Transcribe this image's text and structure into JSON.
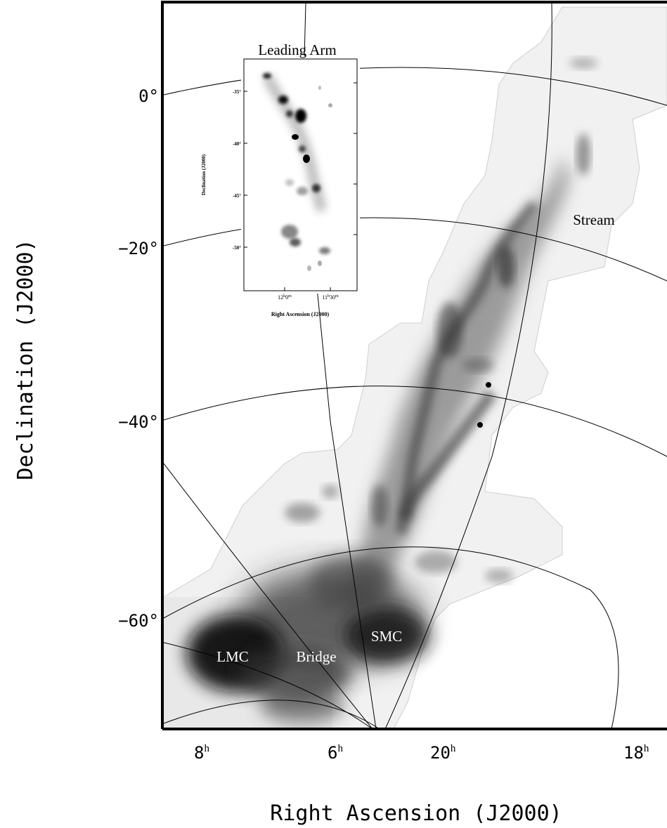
{
  "figure": {
    "x_axis_label": "Right Ascension (J2000)",
    "y_axis_label": "Declination (J2000)",
    "ra_ticks": [
      {
        "hours": "8",
        "sup": "h"
      },
      {
        "hours": "6",
        "sup": "h"
      },
      {
        "hours": "20",
        "sup": "h"
      },
      {
        "hours": "18",
        "sup": "h"
      }
    ],
    "dec_ticks": [
      "0°",
      "−20°",
      "−40°",
      "−60°"
    ],
    "labels": {
      "stream": "Stream",
      "lmc": "LMC",
      "bridge": "Bridge",
      "smc": "SMC"
    }
  },
  "inset": {
    "title": "Leading Arm",
    "x_axis_label": "Right Ascension (J2000)",
    "y_axis_label": "Declination (J2000)",
    "dec_ticks": [
      "-35°",
      "-40°",
      "-45°",
      "-50°"
    ],
    "ra_ticks": [
      {
        "main": "12",
        "h": "h",
        "m": "0",
        "unit": "m"
      },
      {
        "main": "11",
        "h": "h",
        "m": "30",
        "unit": "m"
      }
    ]
  },
  "colors": {
    "emission": "#333333",
    "survey_bg": "#f0f0f0",
    "frame": "#000000"
  }
}
